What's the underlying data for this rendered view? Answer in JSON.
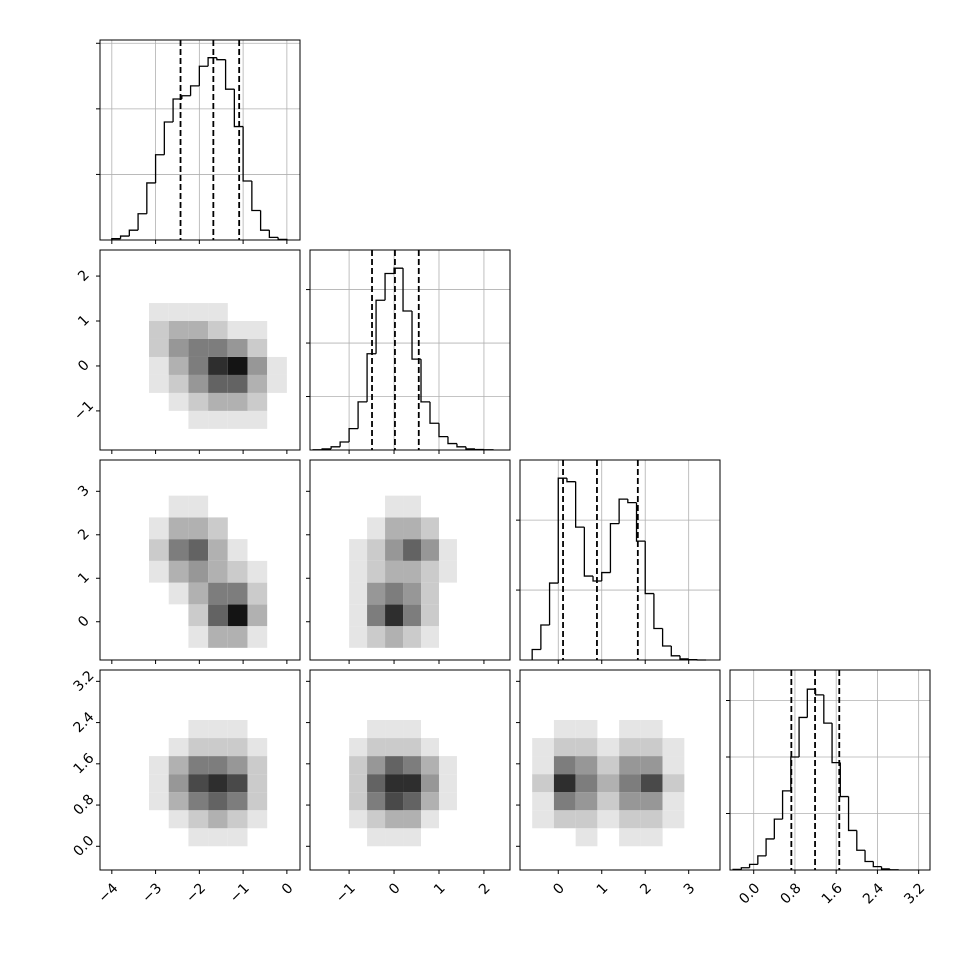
{
  "chart_data": {
    "type": "corner",
    "variables": [
      {
        "lim": [
          -4.27,
          0.3
        ],
        "ticks": [
          {
            "value": -4,
            "label": "−4"
          },
          {
            "value": -3,
            "label": "−3"
          },
          {
            "value": -2,
            "label": "−2"
          },
          {
            "value": -1,
            "label": "−1"
          },
          0
        ],
        "quantiles": [
          -2.43,
          -1.68,
          -1.09
        ],
        "hist": {
          "bins": [
            -4.0,
            -3.8,
            -3.6,
            -3.4,
            -3.2,
            -3.0,
            -2.8,
            -2.6,
            -2.4,
            -2.2,
            -2.0,
            -1.8,
            -1.6,
            -1.4,
            -1.2,
            -1.0,
            -0.8,
            -0.6,
            -0.4,
            -0.2,
            0.0
          ],
          "counts": [
            20,
            60,
            150,
            400,
            870,
            1300,
            1800,
            2150,
            2200,
            2350,
            2650,
            2780,
            2750,
            2300,
            1730,
            900,
            450,
            150,
            40,
            10
          ],
          "ylim": [
            0,
            3050
          ],
          "yticks": [
            1000,
            2000,
            3000
          ]
        },
        "grid_edges": [
          -3.6,
          -3.15,
          -2.7,
          -2.25,
          -1.8,
          -1.35,
          -0.9,
          -0.45,
          0.0
        ]
      },
      {
        "lim": [
          -1.87,
          2.58
        ],
        "ticks": [
          {
            "value": -1,
            "label": "−1"
          },
          0,
          1,
          2
        ],
        "quantiles": [
          -0.49,
          0.02,
          0.55
        ],
        "hist": {
          "bins": [
            -1.8,
            -1.6,
            -1.4,
            -1.2,
            -1.0,
            -0.8,
            -0.6,
            -0.4,
            -0.2,
            0.0,
            0.2,
            0.4,
            0.6,
            0.8,
            1.0,
            1.2,
            1.4,
            1.6,
            1.8,
            2.0,
            2.2
          ],
          "counts": [
            5,
            20,
            60,
            150,
            400,
            900,
            1800,
            2800,
            3300,
            3400,
            2600,
            1700,
            900,
            500,
            250,
            120,
            60,
            20,
            10,
            5
          ],
          "ylim": [
            0,
            3740
          ],
          "yticks": [
            1000,
            2000,
            3000
          ]
        },
        "grid_edges": [
          -1.4,
          -1.0,
          -0.6,
          -0.2,
          0.2,
          0.6,
          1.0,
          1.4,
          1.8
        ]
      },
      {
        "lim": [
          -0.88,
          3.72
        ],
        "ticks": [
          0,
          1,
          2,
          3
        ],
        "quantiles": [
          0.11,
          0.89,
          1.83
        ],
        "hist": {
          "bins": [
            -0.6,
            -0.4,
            -0.2,
            0.0,
            0.2,
            0.4,
            0.6,
            0.8,
            1.0,
            1.2,
            1.4,
            1.6,
            1.8,
            2.0,
            2.2,
            2.4,
            2.6,
            2.8,
            3.0,
            3.2,
            3.4
          ],
          "counts": [
            150,
            500,
            1100,
            2600,
            2550,
            1900,
            1200,
            1130,
            1250,
            1950,
            2300,
            2250,
            1700,
            950,
            450,
            200,
            60,
            15,
            5,
            0
          ],
          "ylim": [
            0,
            2860
          ],
          "yticks": [
            1000,
            2000
          ]
        },
        "grid_edges": [
          -0.6,
          -0.1,
          0.4,
          0.9,
          1.4,
          1.9,
          2.4,
          2.9,
          3.4
        ]
      },
      {
        "lim": [
          -0.46,
          3.42
        ],
        "ticks": [
          {
            "value": 0,
            "label": "0.0"
          },
          0.8,
          1.6,
          2.4,
          3.2
        ],
        "quantiles": [
          0.73,
          1.19,
          1.66
        ],
        "hist": {
          "bins": [
            -0.4,
            -0.24,
            -0.08,
            0.08,
            0.24,
            0.4,
            0.56,
            0.72,
            0.88,
            1.04,
            1.2,
            1.36,
            1.52,
            1.68,
            1.84,
            2.0,
            2.16,
            2.32,
            2.48,
            2.64,
            2.8
          ],
          "counts": [
            10,
            40,
            100,
            250,
            550,
            900,
            1400,
            2000,
            2700,
            3200,
            3100,
            2600,
            1900,
            1300,
            700,
            350,
            150,
            60,
            20,
            5
          ],
          "ylim": [
            0,
            3540
          ],
          "yticks": [
            1000,
            2000,
            3000
          ]
        },
        "grid_edges": [
          0.0,
          0.35,
          0.7,
          1.05,
          1.4,
          1.75,
          2.1,
          2.45,
          2.8
        ]
      }
    ],
    "panels": [
      {
        "counts": [
          [
            0,
            0,
            0,
            1,
            1,
            1,
            1,
            0
          ],
          [
            0,
            0,
            1,
            2,
            3,
            3,
            2,
            0
          ],
          [
            0,
            1,
            2,
            4,
            6,
            6,
            3,
            1
          ],
          [
            0,
            1,
            3,
            5,
            8,
            9,
            4,
            1
          ],
          [
            0,
            2,
            4,
            5,
            5,
            4,
            2,
            0
          ],
          [
            0,
            2,
            3,
            3,
            2,
            1,
            1,
            0
          ],
          [
            0,
            1,
            1,
            1,
            1,
            0,
            0,
            0
          ],
          [
            0,
            0,
            0,
            0,
            0,
            0,
            0,
            0
          ]
        ]
      },
      {
        "counts": [
          [
            0,
            0,
            0,
            1,
            3,
            3,
            1,
            0
          ],
          [
            0,
            0,
            0,
            2,
            6,
            9,
            3,
            0
          ],
          [
            0,
            0,
            1,
            3,
            5,
            5,
            2,
            0
          ],
          [
            0,
            1,
            3,
            4,
            3,
            2,
            1,
            0
          ],
          [
            0,
            2,
            5,
            6,
            3,
            1,
            0,
            0
          ],
          [
            0,
            1,
            3,
            3,
            2,
            0,
            0,
            0
          ],
          [
            0,
            0,
            1,
            1,
            0,
            0,
            0,
            0
          ],
          [
            0,
            0,
            0,
            0,
            0,
            0,
            0,
            0
          ]
        ]
      },
      {
        "counts": [
          [
            0,
            1,
            2,
            3,
            2,
            1,
            0,
            0
          ],
          [
            0,
            1,
            5,
            8,
            5,
            2,
            0,
            0
          ],
          [
            0,
            1,
            4,
            5,
            4,
            2,
            0,
            0
          ],
          [
            0,
            1,
            2,
            3,
            3,
            2,
            1,
            0
          ],
          [
            0,
            1,
            2,
            4,
            6,
            4,
            1,
            0
          ],
          [
            0,
            0,
            1,
            3,
            3,
            2,
            0,
            0
          ],
          [
            0,
            0,
            0,
            1,
            1,
            0,
            0,
            0
          ],
          [
            0,
            0,
            0,
            0,
            0,
            0,
            0,
            0
          ]
        ]
      },
      {
        "counts": [
          [
            0,
            0,
            0,
            1,
            1,
            1,
            0,
            0
          ],
          [
            0,
            0,
            1,
            2,
            3,
            2,
            1,
            0
          ],
          [
            0,
            1,
            3,
            5,
            6,
            5,
            2,
            0
          ],
          [
            0,
            1,
            4,
            7,
            8,
            7,
            2,
            0
          ],
          [
            0,
            1,
            3,
            5,
            5,
            4,
            2,
            0
          ],
          [
            0,
            0,
            1,
            2,
            2,
            2,
            1,
            0
          ],
          [
            0,
            0,
            0,
            1,
            1,
            1,
            0,
            0
          ],
          [
            0,
            0,
            0,
            0,
            0,
            0,
            0,
            0
          ]
        ]
      },
      {
        "counts": [
          [
            0,
            0,
            1,
            1,
            1,
            0,
            0,
            0
          ],
          [
            0,
            1,
            2,
            3,
            3,
            1,
            0,
            0
          ],
          [
            0,
            2,
            5,
            7,
            6,
            3,
            1,
            0
          ],
          [
            0,
            2,
            6,
            8,
            8,
            4,
            1,
            0
          ],
          [
            0,
            2,
            4,
            6,
            5,
            3,
            1,
            0
          ],
          [
            0,
            1,
            2,
            2,
            2,
            1,
            0,
            0
          ],
          [
            0,
            0,
            1,
            1,
            1,
            0,
            0,
            0
          ],
          [
            0,
            0,
            0,
            0,
            0,
            0,
            0,
            0
          ]
        ]
      },
      {
        "counts": [
          [
            0,
            0,
            1,
            0,
            1,
            1,
            0,
            0
          ],
          [
            1,
            2,
            2,
            1,
            2,
            2,
            1,
            0
          ],
          [
            1,
            5,
            4,
            2,
            4,
            4,
            1,
            0
          ],
          [
            2,
            8,
            5,
            3,
            5,
            7,
            2,
            0
          ],
          [
            1,
            5,
            4,
            2,
            4,
            4,
            1,
            0
          ],
          [
            1,
            2,
            2,
            1,
            2,
            2,
            1,
            0
          ],
          [
            0,
            1,
            1,
            0,
            1,
            1,
            0,
            0
          ],
          [
            0,
            0,
            0,
            0,
            0,
            0,
            0,
            0
          ]
        ]
      }
    ],
    "grid_max": 9,
    "grid": true
  }
}
